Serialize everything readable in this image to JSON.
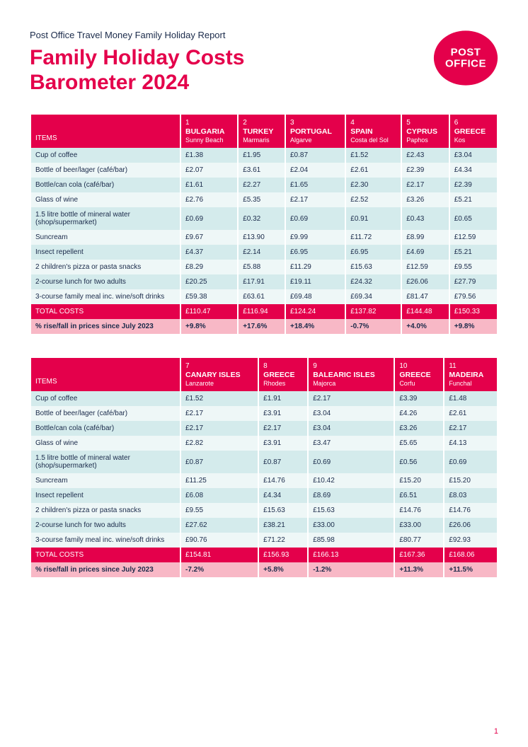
{
  "header": {
    "pretitle": "Post Office Travel Money Family Holiday Report",
    "title_line1": "Family Holiday Costs",
    "title_line2": "Barometer 2024",
    "logo_line1": "POST",
    "logo_line2": "OFFICE",
    "logo_fill": "#e4004b"
  },
  "items_header": "ITEMS",
  "total_label": "TOTAL COSTS",
  "change_label": "% rise/fall in prices since July 2023",
  "items": [
    "Cup of coffee",
    "Bottle of beer/lager (café/bar)",
    "Bottle/can cola (café/bar)",
    "Glass of wine",
    "1.5 litre bottle of mineral water (shop/supermarket)",
    "Suncream",
    "Insect repellent",
    "2 children's pizza or pasta snacks",
    "2-course lunch for two adults",
    "3-course family meal inc. wine/soft drinks"
  ],
  "table1": {
    "destinations": [
      {
        "rank": "1",
        "country": "BULGARIA",
        "region": "Sunny Beach",
        "values": [
          "£1.38",
          "£2.07",
          "£1.61",
          "£2.76",
          "£0.69",
          "£9.67",
          "£4.37",
          "£8.29",
          "£20.25",
          "£59.38"
        ],
        "total": "£110.47",
        "change": "+9.8%"
      },
      {
        "rank": "2",
        "country": "TURKEY",
        "region": "Marmaris",
        "values": [
          "£1.95",
          "£3.61",
          "£2.27",
          "£5.35",
          "£0.32",
          "£13.90",
          "£2.14",
          "£5.88",
          "£17.91",
          "£63.61"
        ],
        "total": "£116.94",
        "change": "+17.6%"
      },
      {
        "rank": "3",
        "country": "PORTUGAL",
        "region": "Algarve",
        "values": [
          "£0.87",
          "£2.04",
          "£1.65",
          "£2.17",
          "£0.69",
          "£9.99",
          "£6.95",
          "£11.29",
          "£19.11",
          "£69.48"
        ],
        "total": "£124.24",
        "change": "+18.4%"
      },
      {
        "rank": "4",
        "country": "SPAIN",
        "region": "Costa del Sol",
        "values": [
          "£1.52",
          "£2.61",
          "£2.30",
          "£2.52",
          "£0.91",
          "£11.72",
          "£6.95",
          "£15.63",
          "£24.32",
          "£69.34"
        ],
        "total": "£137.82",
        "change": "-0.7%"
      },
      {
        "rank": "5",
        "country": "CYPRUS",
        "region": "Paphos",
        "values": [
          "£2.43",
          "£2.39",
          "£2.17",
          "£3.26",
          "£0.43",
          "£8.99",
          "£4.69",
          "£12.59",
          "£26.06",
          "£81.47"
        ],
        "total": "£144.48",
        "change": "+4.0%"
      },
      {
        "rank": "6",
        "country": "GREECE",
        "region": "Kos",
        "values": [
          "£3.04",
          "£4.34",
          "£2.39",
          "£5.21",
          "£0.65",
          "£12.59",
          "£5.21",
          "£9.55",
          "£27.79",
          "£79.56"
        ],
        "total": "£150.33",
        "change": "+9.8%"
      }
    ]
  },
  "table2": {
    "destinations": [
      {
        "rank": "7",
        "country": "CANARY ISLES",
        "region": "Lanzarote",
        "values": [
          "£1.52",
          "£2.17",
          "£2.17",
          "£2.82",
          "£0.87",
          "£11.25",
          "£6.08",
          "£9.55",
          "£27.62",
          "£90.76"
        ],
        "total": "£154.81",
        "change": "-7.2%"
      },
      {
        "rank": "8",
        "country": "GREECE",
        "region": "Rhodes",
        "values": [
          "£1.91",
          "£3.91",
          "£2.17",
          "£3.91",
          "£0.87",
          "£14.76",
          "£4.34",
          "£15.63",
          "£38.21",
          "£71.22"
        ],
        "total": "£156.93",
        "change": "+5.8%"
      },
      {
        "rank": "9",
        "country": "BALEARIC ISLES",
        "region": "Majorca",
        "values": [
          "£2.17",
          "£3.04",
          "£3.04",
          "£3.47",
          "£0.69",
          "£10.42",
          "£8.69",
          "£15.63",
          "£33.00",
          "£85.98"
        ],
        "total": "£166.13",
        "change": "-1.2%"
      },
      {
        "rank": "10",
        "country": "GREECE",
        "region": "Corfu",
        "values": [
          "£3.39",
          "£4.26",
          "£3.26",
          "£5.65",
          "£0.56",
          "£15.20",
          "£6.51",
          "£14.76",
          "£33.00",
          "£80.77"
        ],
        "total": "£167.36",
        "change": "+11.3%"
      },
      {
        "rank": "11",
        "country": "MADEIRA",
        "region": "Funchal",
        "values": [
          "£1.48",
          "£2.61",
          "£2.17",
          "£4.13",
          "£0.69",
          "£15.20",
          "£8.03",
          "£14.76",
          "£26.06",
          "£92.93"
        ],
        "total": "£168.06",
        "change": "+11.5%"
      }
    ]
  },
  "page_number": "1",
  "style": {
    "brand_red": "#e4004b",
    "row_odd_bg": "#d4ebec",
    "row_even_bg": "#eef7f7",
    "change_row_bg": "#f8b8c6",
    "text_color": "#1a2a4a"
  }
}
